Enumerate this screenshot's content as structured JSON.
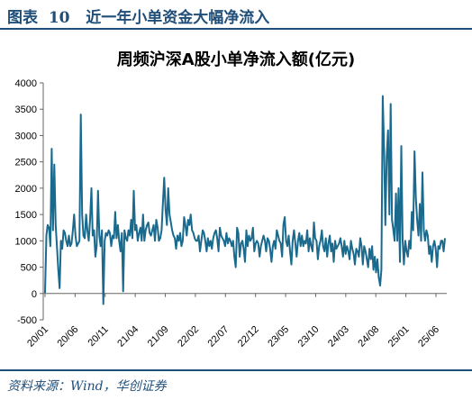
{
  "header": {
    "figure_label": "图表",
    "figure_number": "10",
    "caption": "近一年小单资金大幅净流入"
  },
  "source": "资料来源：Wind，华创证券",
  "chart_data": {
    "type": "line",
    "title": "周频沪深A股小单净流入额(亿元)",
    "xlabel": "",
    "ylabel": "",
    "ylim": [
      -500,
      4000
    ],
    "yticks": [
      -500,
      0,
      500,
      1000,
      1500,
      2000,
      2500,
      3000,
      3500,
      4000
    ],
    "xticks": [
      "20/01",
      "20/06",
      "20/11",
      "21/04",
      "21/09",
      "22/02",
      "22/07",
      "22/12",
      "23/05",
      "23/10",
      "24/03",
      "24/08",
      "25/01",
      "25/06"
    ],
    "grid": false,
    "colors": {
      "line": "#1a6a8e",
      "axis": "#666666"
    },
    "series": [
      {
        "values": [
          10,
          1100,
          1300,
          1250,
          900,
          2750,
          1200,
          2450,
          1300,
          900,
          450,
          100,
          1000,
          850,
          1200,
          1150,
          1000,
          900,
          1100,
          900,
          950,
          1200,
          1500,
          1100,
          900,
          950,
          1000,
          3400,
          1500,
          1100,
          1050,
          1500,
          1200,
          1000,
          1400,
          2000,
          1100,
          1200,
          700,
          900,
          1950,
          1100,
          900,
          1200,
          -200,
          1000,
          1150,
          1100,
          1200,
          1150,
          900,
          1100,
          1050,
          1550,
          1050,
          1300,
          1000,
          800,
          1150,
          40,
          1200,
          1050,
          1000,
          1200,
          1100,
          1400,
          1050,
          1950,
          1200,
          1300,
          1000,
          1150,
          1250,
          1000,
          1500,
          1000,
          1200,
          1300,
          1350,
          1150,
          1100,
          1200,
          1300,
          1000,
          1400,
          1250,
          1000,
          1050,
          1200,
          1700,
          2200,
          1600,
          1300,
          2000,
          1500,
          1350,
          1200,
          1100,
          1050,
          850,
          1100,
          1000,
          1150,
          900,
          1000,
          1450,
          1300,
          1100,
          1400,
          1300,
          1500,
          1200,
          1150,
          1050,
          1000,
          1000,
          1100,
          800,
          1000,
          1200,
          1150,
          1000,
          800,
          1050,
          900,
          1000,
          850,
          1050,
          1150,
          1200,
          1050,
          800,
          1250,
          1100,
          1050,
          1000,
          900,
          1150,
          950,
          1050,
          1000,
          900,
          1000,
          700,
          500,
          1250,
          1150,
          700,
          950,
          1000,
          850,
          600,
          1200,
          900,
          1100,
          1000,
          1050,
          1250,
          800,
          950,
          1000,
          950,
          700,
          900,
          1000,
          1100,
          1000,
          800,
          1050,
          1000,
          850,
          600,
          900,
          1000,
          850,
          1200,
          1100,
          1000,
          950,
          700,
          1300,
          1450,
          1000,
          900,
          1100,
          800,
          550,
          1000,
          1200,
          950,
          700,
          1000,
          1150,
          900,
          1100,
          900,
          1000,
          950,
          1200,
          800,
          1050,
          900,
          800,
          1350,
          1050,
          1000,
          650,
          900,
          1000,
          1200,
          900,
          800,
          1050,
          700,
          950,
          1100,
          800,
          950,
          600,
          1000,
          850,
          900,
          950,
          1050,
          900,
          700,
          1000,
          750,
          900,
          800,
          650,
          1000,
          850,
          750,
          550,
          850,
          800,
          700,
          1050,
          900,
          550,
          900,
          800,
          650,
          500,
          850,
          650,
          900,
          450,
          700,
          400,
          650,
          300,
          150,
          450,
          3750,
          2750,
          1300,
          2600,
          3100,
          1500,
          3600,
          1400,
          1200,
          1000,
          1900,
          1000,
          2000,
          600,
          2800,
          1000,
          550,
          1000,
          800,
          700,
          1000,
          850,
          1550,
          1200,
          2700,
          1800,
          1400,
          1100,
          1700,
          1000,
          2300,
          1200,
          1000,
          1200,
          1100,
          750,
          900,
          600,
          900,
          1000,
          850,
          500,
          900,
          850,
          1000,
          1000,
          800,
          1050
        ]
      }
    ]
  }
}
